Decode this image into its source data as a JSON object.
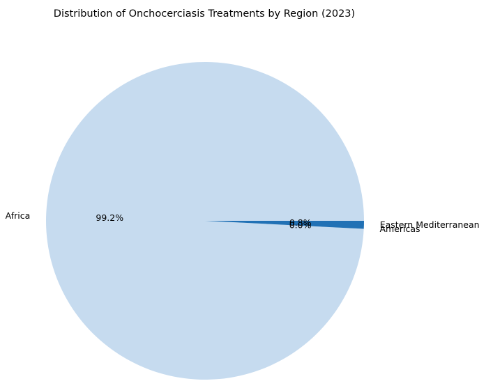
{
  "chart_data": {
    "type": "pie",
    "title": "Distribution of Onchocerciasis Treatments by Region (2023)",
    "categories": [
      "Africa",
      "Americas",
      "Eastern Mediterranean"
    ],
    "values": [
      99.2,
      0.0,
      0.8
    ],
    "percent_labels": [
      "99.2%",
      "0.0%",
      "0.8%"
    ],
    "colors": [
      "#c6dbef",
      "#6baed6",
      "#2171b5"
    ],
    "start_angle_deg": 0,
    "direction": "counterclockwise",
    "legend": "none"
  }
}
